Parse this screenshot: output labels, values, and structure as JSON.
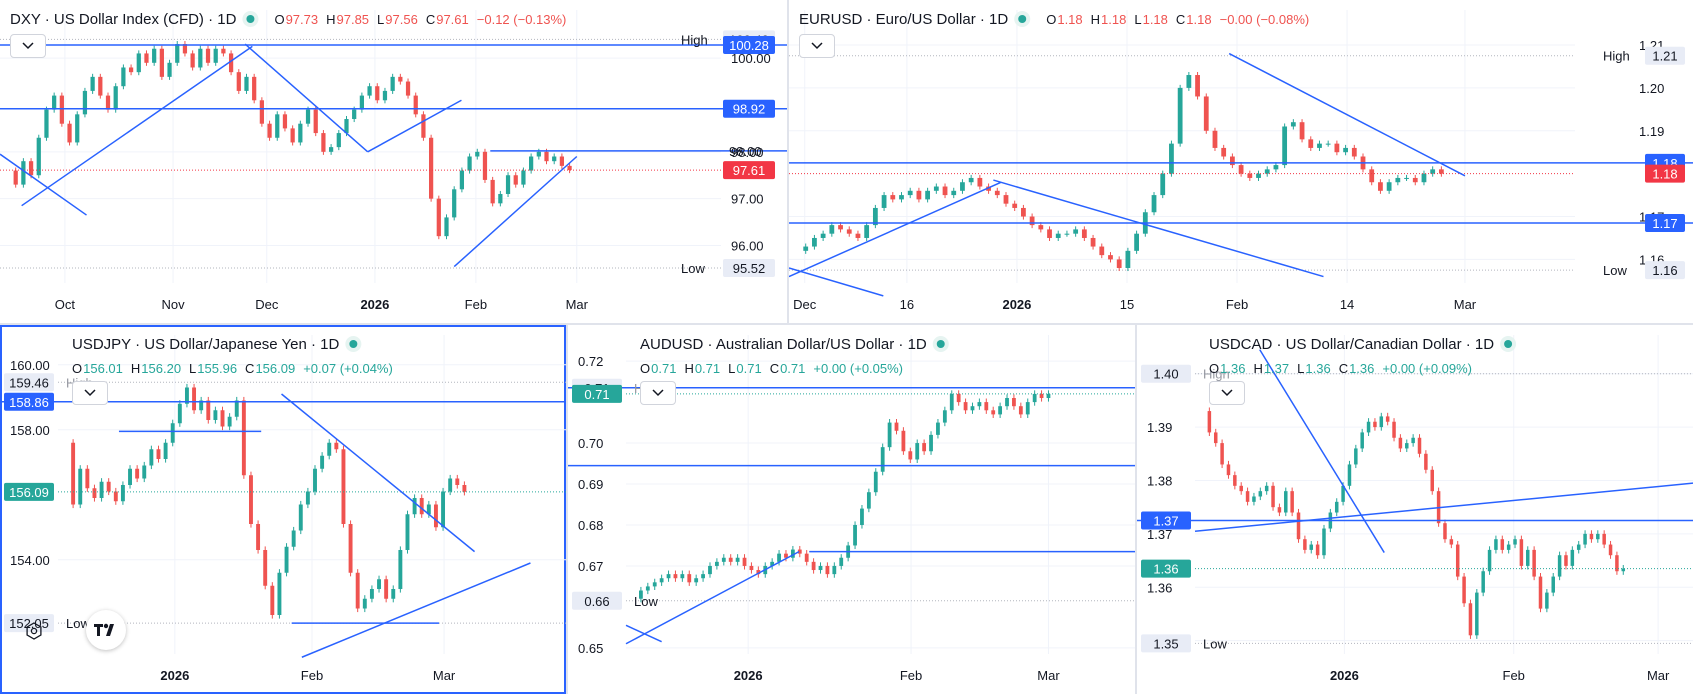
{
  "colors": {
    "up": "#26a69a",
    "down": "#ef5350",
    "line": "#2962ff",
    "grid": "#f0f3fa",
    "text": "#131722",
    "axis": "#131722",
    "badge_price_up": "#26a69a",
    "badge_price_down": "#f23645",
    "badge_blue": "#2962ff",
    "badge_gray": "#e8ecf6"
  },
  "icons": {
    "status_dot": "market-open-dot-icon",
    "collapse": "chevron-down-icon",
    "logo": "tradingview-logo-icon",
    "settings": "gear-icon"
  },
  "chart_data": [
    {
      "id": "dxy",
      "type": "candlestick",
      "title": "DXY · US Dollar Index (CFD) · 1D",
      "ohlc": {
        "O": "97.73",
        "H": "97.85",
        "L": "97.56",
        "C": "97.61",
        "chg": "−0.12 (−0.13%)"
      },
      "ohlc_tone": "down",
      "ylim": [
        95.2,
        100.6
      ],
      "ticks": [
        "100.00",
        "98.00",
        "97.00",
        "96.00"
      ],
      "tick_values": [
        100.0,
        98.0,
        97.0,
        96.0
      ],
      "xticks": [
        "Oct",
        "Nov",
        "Dec",
        "2026",
        "Feb",
        "Mar"
      ],
      "xtick_pos": [
        0.09,
        0.24,
        0.37,
        0.52,
        0.66,
        0.8
      ],
      "bold_xtick": "2026",
      "high": {
        "label": "High",
        "value": "100.40",
        "v": 100.4
      },
      "low": {
        "label": "Low",
        "value": "95.52",
        "v": 95.52
      },
      "last": {
        "value": "97.61",
        "v": 97.61,
        "tone": "down"
      },
      "hlines": [
        {
          "value": "100.28",
          "v": 100.28,
          "badge": true
        },
        {
          "value": "98.92",
          "v": 98.92,
          "badge": true
        },
        {
          "value": "98.00",
          "v": 98.02,
          "badge": false,
          "from": 0.68
        }
      ],
      "trend": [
        {
          "x": [
            0.03,
            0.35
          ],
          "y": [
            96.85,
            100.25
          ]
        },
        {
          "x": [
            0.34,
            0.51
          ],
          "y": [
            100.3,
            98.0
          ]
        },
        {
          "x": [
            0.51,
            0.64
          ],
          "y": [
            98.0,
            99.1
          ]
        },
        {
          "x": [
            0.0,
            0.12
          ],
          "y": [
            97.95,
            96.65
          ]
        },
        {
          "x": [
            0.63,
            0.8
          ],
          "y": [
            95.55,
            97.9
          ]
        }
      ],
      "path": [
        97.6,
        97.3,
        97.8,
        97.5,
        98.3,
        98.9,
        99.2,
        98.6,
        98.2,
        98.8,
        99.3,
        99.6,
        99.2,
        98.9,
        99.4,
        99.8,
        99.7,
        100.1,
        99.9,
        100.2,
        99.6,
        99.9,
        100.3,
        100.1,
        99.8,
        100.2,
        99.9,
        100.2,
        100.1,
        99.7,
        99.3,
        99.6,
        99.1,
        98.6,
        98.3,
        98.8,
        98.5,
        98.2,
        98.6,
        98.9,
        98.4,
        98.0,
        98.1,
        98.4,
        98.7,
        98.9,
        99.2,
        99.4,
        99.1,
        99.3,
        99.6,
        99.5,
        99.2,
        98.8,
        98.3,
        97.0,
        96.2,
        96.6,
        97.2,
        97.6,
        97.9,
        98.0,
        97.4,
        96.9,
        97.1,
        97.5,
        97.3,
        97.6,
        97.9,
        98.0,
        97.8,
        97.9,
        97.7,
        97.61
      ]
    },
    {
      "id": "eurusd",
      "type": "candlestick",
      "title": "EURUSD · Euro/US Dollar · 1D",
      "ohlc": {
        "O": "1.18",
        "H": "1.18",
        "L": "1.18",
        "C": "1.18",
        "chg": "−0.00 (−0.08%)"
      },
      "ohlc_tone": "down",
      "ylim": [
        1.1545,
        1.2135
      ],
      "ticks": [
        "1.21",
        "1.20",
        "1.19",
        "1.17",
        "1.16"
      ],
      "tick_values": [
        1.21,
        1.2,
        1.19,
        1.17,
        1.16
      ],
      "xticks": [
        "Dec",
        "16",
        "2026",
        "15",
        "Feb",
        "14",
        "Mar"
      ],
      "xtick_pos": [
        0.02,
        0.15,
        0.29,
        0.43,
        0.57,
        0.71,
        0.86
      ],
      "bold_xtick": "2026",
      "high": {
        "label": "High",
        "value": "1.21",
        "v": 1.2075
      },
      "low": {
        "label": "Low",
        "value": "1.16",
        "v": 1.1575
      },
      "last": {
        "value": "1.18",
        "v": 1.18,
        "tone": "down"
      },
      "hlines": [
        {
          "value": "1.18",
          "v": 1.1825,
          "badge": true
        },
        {
          "value": "1.17",
          "v": 1.1685,
          "badge": true
        }
      ],
      "trend": [
        {
          "x": [
            0.0,
            0.27
          ],
          "y": [
            1.156,
            1.178
          ]
        },
        {
          "x": [
            0.26,
            0.68
          ],
          "y": [
            1.1785,
            1.156
          ]
        },
        {
          "x": [
            0.56,
            0.86
          ],
          "y": [
            1.208,
            1.1795
          ]
        },
        {
          "x": [
            0.0,
            0.12
          ],
          "y": [
            1.158,
            1.1515
          ]
        }
      ],
      "path": [
        1.162,
        1.163,
        1.165,
        1.166,
        1.168,
        1.167,
        1.166,
        1.165,
        1.168,
        1.172,
        1.175,
        1.174,
        1.175,
        1.176,
        1.174,
        1.176,
        1.177,
        1.175,
        1.176,
        1.178,
        1.179,
        1.177,
        1.176,
        1.175,
        1.173,
        1.172,
        1.17,
        1.168,
        1.167,
        1.165,
        1.166,
        1.166,
        1.167,
        1.165,
        1.163,
        1.161,
        1.16,
        1.158,
        1.162,
        1.166,
        1.171,
        1.175,
        1.18,
        1.187,
        1.2,
        1.203,
        1.198,
        1.19,
        1.186,
        1.184,
        1.182,
        1.18,
        1.179,
        1.18,
        1.181,
        1.182,
        1.191,
        1.192,
        1.188,
        1.186,
        1.187,
        1.187,
        1.185,
        1.186,
        1.184,
        1.181,
        1.178,
        1.176,
        1.178,
        1.179,
        1.179,
        1.178,
        1.18,
        1.181,
        1.18
      ]
    },
    {
      "id": "usdjpy",
      "type": "candlestick",
      "title": "USDJPY · US Dollar/Japanese Yen · 1D",
      "ohlc": {
        "O": "156.01",
        "H": "156.20",
        "L": "155.96",
        "C": "156.09",
        "chg": "+0.07 (+0.04%)"
      },
      "ohlc_tone": "up",
      "ylim": [
        151.1,
        160.3
      ],
      "ticks": [
        "160.00",
        "158.00",
        "154.00"
      ],
      "tick_values": [
        160.0,
        158.0,
        154.0
      ],
      "xticks": [
        "2026",
        "Feb",
        "Mar"
      ],
      "xtick_pos": [
        0.23,
        0.5,
        0.76
      ],
      "bold_xtick": "2026",
      "high": {
        "label": "High",
        "value": "159.46",
        "v": 159.46
      },
      "low": {
        "label": "Low",
        "value": "152.05",
        "v": 152.05
      },
      "last": {
        "value": "156.09",
        "v": 156.09,
        "tone": "up"
      },
      "hlines": [
        {
          "value": "158.86",
          "v": 158.86,
          "badge": true
        }
      ],
      "segments": [
        {
          "x": [
            0.12,
            0.4
          ],
          "y": [
            157.95,
            157.95
          ]
        },
        {
          "x": [
            0.46,
            0.75
          ],
          "y": [
            152.05,
            152.05
          ]
        }
      ],
      "trend": [
        {
          "x": [
            0.44,
            0.82
          ],
          "y": [
            159.1,
            154.25
          ]
        },
        {
          "x": [
            0.48,
            0.93
          ],
          "y": [
            151.0,
            153.9
          ]
        }
      ],
      "path": [
        157.6,
        155.7,
        156.8,
        156.2,
        155.9,
        156.4,
        156.1,
        155.8,
        156.3,
        156.8,
        156.5,
        156.9,
        157.4,
        157.1,
        157.6,
        158.2,
        158.8,
        159.3,
        158.6,
        158.9,
        158.3,
        158.6,
        158.1,
        158.4,
        158.9,
        156.6,
        155.1,
        154.3,
        153.2,
        152.3,
        153.6,
        154.4,
        154.9,
        155.7,
        156.1,
        156.8,
        157.2,
        157.6,
        157.4,
        155.1,
        153.6,
        152.5,
        152.8,
        153.1,
        153.4,
        152.8,
        153.1,
        154.3,
        155.4,
        155.9,
        155.4,
        155.7,
        155.0,
        156.1,
        156.5,
        156.3,
        156.09
      ]
    },
    {
      "id": "audusd",
      "type": "candlestick",
      "title": "AUDUSD · Australian Dollar/US Dollar · 1D",
      "ohlc": {
        "O": "0.71",
        "H": "0.71",
        "L": "0.71",
        "C": "0.71",
        "chg": "+0.00 (+0.05%)"
      },
      "ohlc_tone": "up",
      "ylim": [
        0.6485,
        0.7215
      ],
      "ticks": [
        "0.72",
        "0.70",
        "0.69",
        "0.68",
        "0.67",
        "0.65"
      ],
      "tick_values": [
        0.72,
        0.7,
        0.69,
        0.68,
        0.67,
        0.65
      ],
      "xticks": [
        "2026",
        "Feb",
        "Mar"
      ],
      "xtick_pos": [
        0.24,
        0.56,
        0.83
      ],
      "bold_xtick": "2026",
      "high": {
        "label": "High",
        "value": "0.71",
        "v": 0.7135
      },
      "low": {
        "label": "Low",
        "value": "0.66",
        "v": 0.6615
      },
      "last": {
        "value": "0.71",
        "v": 0.712,
        "tone": "up"
      },
      "hlines": [
        {
          "value": "",
          "v": 0.7135,
          "badge": false
        },
        {
          "value": "",
          "v": 0.6945,
          "badge": false
        },
        {
          "value": "",
          "v": 0.6735,
          "badge": false,
          "from": 0.36
        }
      ],
      "segments": [],
      "trend": [
        {
          "x": [
            0.0,
            0.34
          ],
          "y": [
            0.651,
            0.6735
          ]
        },
        {
          "x": [
            0.0,
            0.07
          ],
          "y": [
            0.6555,
            0.6515
          ]
        }
      ],
      "path": [
        0.662,
        0.664,
        0.665,
        0.666,
        0.667,
        0.668,
        0.667,
        0.668,
        0.666,
        0.667,
        0.668,
        0.67,
        0.671,
        0.672,
        0.671,
        0.672,
        0.67,
        0.669,
        0.668,
        0.67,
        0.671,
        0.673,
        0.672,
        0.674,
        0.673,
        0.671,
        0.669,
        0.67,
        0.668,
        0.67,
        0.672,
        0.675,
        0.68,
        0.684,
        0.688,
        0.693,
        0.699,
        0.705,
        0.703,
        0.698,
        0.696,
        0.7,
        0.698,
        0.702,
        0.705,
        0.708,
        0.712,
        0.71,
        0.708,
        0.709,
        0.71,
        0.708,
        0.707,
        0.709,
        0.711,
        0.709,
        0.707,
        0.71,
        0.712,
        0.711,
        0.712
      ]
    },
    {
      "id": "usdcad",
      "type": "candlestick",
      "title": "USDCAD · US Dollar/Canadian Dollar · 1D",
      "ohlc": {
        "O": "1.36",
        "H": "1.37",
        "L": "1.36",
        "C": "1.36",
        "chg": "+0.00 (+0.09%)"
      },
      "ohlc_tone": "up",
      "ylim": [
        1.3475,
        1.4035
      ],
      "ticks": [
        "1.40",
        "1.39",
        "1.38",
        "1.37",
        "1.36",
        "1.35"
      ],
      "tick_values": [
        1.4,
        1.39,
        1.38,
        1.37,
        1.36,
        1.35
      ],
      "xticks": [
        "2026",
        "Feb",
        "Mar"
      ],
      "xtick_pos": [
        0.3,
        0.64,
        0.93
      ],
      "bold_xtick": "2026",
      "high": {
        "label": "High",
        "value": "1.40",
        "v": 1.4
      },
      "low": {
        "label": "Low",
        "value": "1.35",
        "v": 1.3495
      },
      "last": {
        "value": "1.36",
        "v": 1.3635,
        "tone": "up"
      },
      "hlines": [
        {
          "value": "1.37",
          "v": 1.3725,
          "badge": true
        }
      ],
      "segments": [],
      "trend": [
        {
          "x": [
            0.0,
            1.0
          ],
          "y": [
            1.3705,
            1.3795
          ]
        },
        {
          "x": [
            0.13,
            0.38
          ],
          "y": [
            1.4045,
            1.3665
          ]
        }
      ],
      "path": [
        1.393,
        1.389,
        1.387,
        1.383,
        1.381,
        1.379,
        1.378,
        1.376,
        1.377,
        1.378,
        1.379,
        1.375,
        1.374,
        1.378,
        1.374,
        1.369,
        1.367,
        1.368,
        1.366,
        1.371,
        1.374,
        1.376,
        1.379,
        1.383,
        1.386,
        1.389,
        1.391,
        1.39,
        1.392,
        1.391,
        1.388,
        1.386,
        1.387,
        1.388,
        1.385,
        1.382,
        1.378,
        1.372,
        1.369,
        1.368,
        1.362,
        1.357,
        1.351,
        1.359,
        1.363,
        1.367,
        1.369,
        1.367,
        1.368,
        1.369,
        1.364,
        1.367,
        1.362,
        1.356,
        1.359,
        1.362,
        1.366,
        1.364,
        1.367,
        1.368,
        1.37,
        1.369,
        1.37,
        1.368,
        1.366,
        1.363,
        1.3635
      ]
    }
  ]
}
